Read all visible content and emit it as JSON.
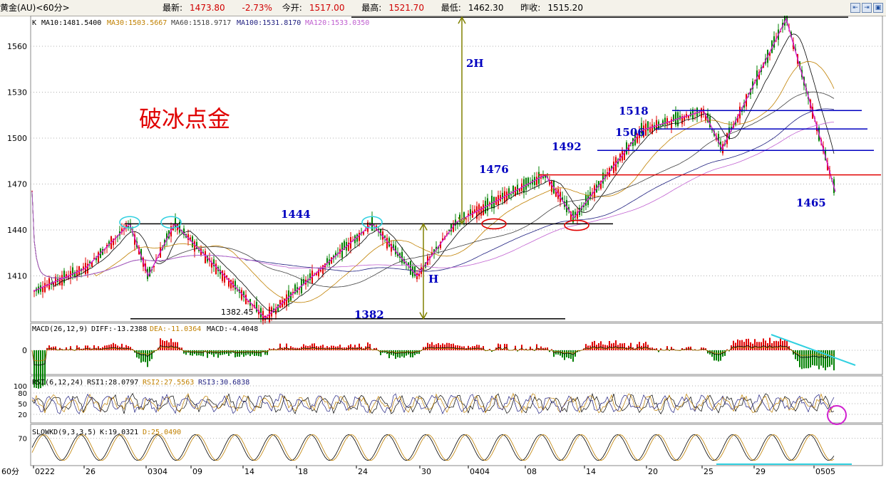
{
  "header": {
    "symbol": "黄金(AU)<60分>",
    "latest_label": "最新:",
    "latest": "1473.80",
    "change": "-2.73%",
    "open_label": "今开:",
    "open": "1517.00",
    "high_label": "最高:",
    "high": "1521.70",
    "low_label": "最低:",
    "low": "1462.30",
    "prev_label": "昨收:",
    "prev": "1515.20"
  },
  "indicators": {
    "main": {
      "k": "K",
      "ma10": "MA10:1481.5400",
      "ma30": "MA30:1503.5667",
      "ma60": "MA60:1518.9717",
      "ma100": "MA100:1531.8170",
      "ma120": "MA120:1533.0350"
    },
    "macd": {
      "name": "MACD(26,12,9)",
      "diff": "DIFF:-13.2388",
      "dea": "DEA:-11.0364",
      "macd": "MACD:-4.4048"
    },
    "rsi": {
      "name": "RSI(6,12,24)",
      "rsi1": "RSI1:28.0797",
      "rsi2": "RSI2:27.5563",
      "rsi3": "RSI3:30.6838"
    },
    "kd": {
      "name": "SLOWKD(9,3,3,5)",
      "k": "K:19.0321",
      "d": "D:25.0490"
    }
  },
  "annotations": {
    "title": "破冰点金",
    "lvl_1444": "1444",
    "lvl_1382": "1382",
    "lvl_1476": "1476",
    "lvl_1492": "1492",
    "lvl_1506": "1506",
    "lvl_1518": "1518",
    "lvl_1465": "1465",
    "label_2h": "2H",
    "label_h": "H",
    "low_value": "1382.45"
  },
  "axis": {
    "price_ticks": [
      "1560",
      "1530",
      "1500",
      "1470",
      "1440",
      "1410"
    ],
    "macd_ticks": [
      "0"
    ],
    "rsi_ticks": [
      "100",
      "80",
      "50",
      "20"
    ],
    "kd_ticks": [
      "70"
    ],
    "period": "60分",
    "date_ticks": [
      "0222",
      "26",
      "0304",
      "09",
      "14",
      "18",
      "24",
      "30",
      "0404",
      "08",
      "14",
      "20",
      "25",
      "29",
      "0505"
    ]
  },
  "colors": {
    "up": "#e00000",
    "down": "#008000",
    "ma10": "#000000",
    "ma30": "#c08000",
    "ma60": "#404040",
    "ma100": "#202080",
    "ma120": "#c060d0",
    "zig": "#d020d0",
    "lines": "#0000c0",
    "cyan": "#30d0e0"
  },
  "chart_data": {
    "type": "line",
    "x_unit": "60-minute bars",
    "dates": [
      "0222",
      "26",
      "0304",
      "09",
      "14",
      "18",
      "24",
      "30",
      "0404",
      "08",
      "14",
      "20",
      "25",
      "29",
      "0505"
    ],
    "ylim": [
      1380,
      1580
    ],
    "price_path": [
      {
        "x": "0222",
        "y": 1400
      },
      {
        "x": "26",
        "y": 1415
      },
      {
        "x": "0304",
        "y": 1444
      },
      {
        "x": "0304",
        "y": 1410
      },
      {
        "x": "09",
        "y": 1444
      },
      {
        "x": "14",
        "y": 1382.45
      },
      {
        "x": "24",
        "y": 1444
      },
      {
        "x": "30",
        "y": 1410
      },
      {
        "x": "0404",
        "y": 1445
      },
      {
        "x": "08",
        "y": 1476
      },
      {
        "x": "14",
        "y": 1448
      },
      {
        "x": "20",
        "y": 1505
      },
      {
        "x": "25",
        "y": 1518
      },
      {
        "x": "25",
        "y": 1493
      },
      {
        "x": "29",
        "y": 1578
      },
      {
        "x": "0505",
        "y": 1465
      }
    ],
    "support_resistance": [
      1382,
      1444,
      1476,
      1492,
      1506,
      1518
    ],
    "macd_zero": 0,
    "rsi_levels": [
      20,
      50,
      80,
      100
    ],
    "kd_levels": [
      70
    ]
  }
}
